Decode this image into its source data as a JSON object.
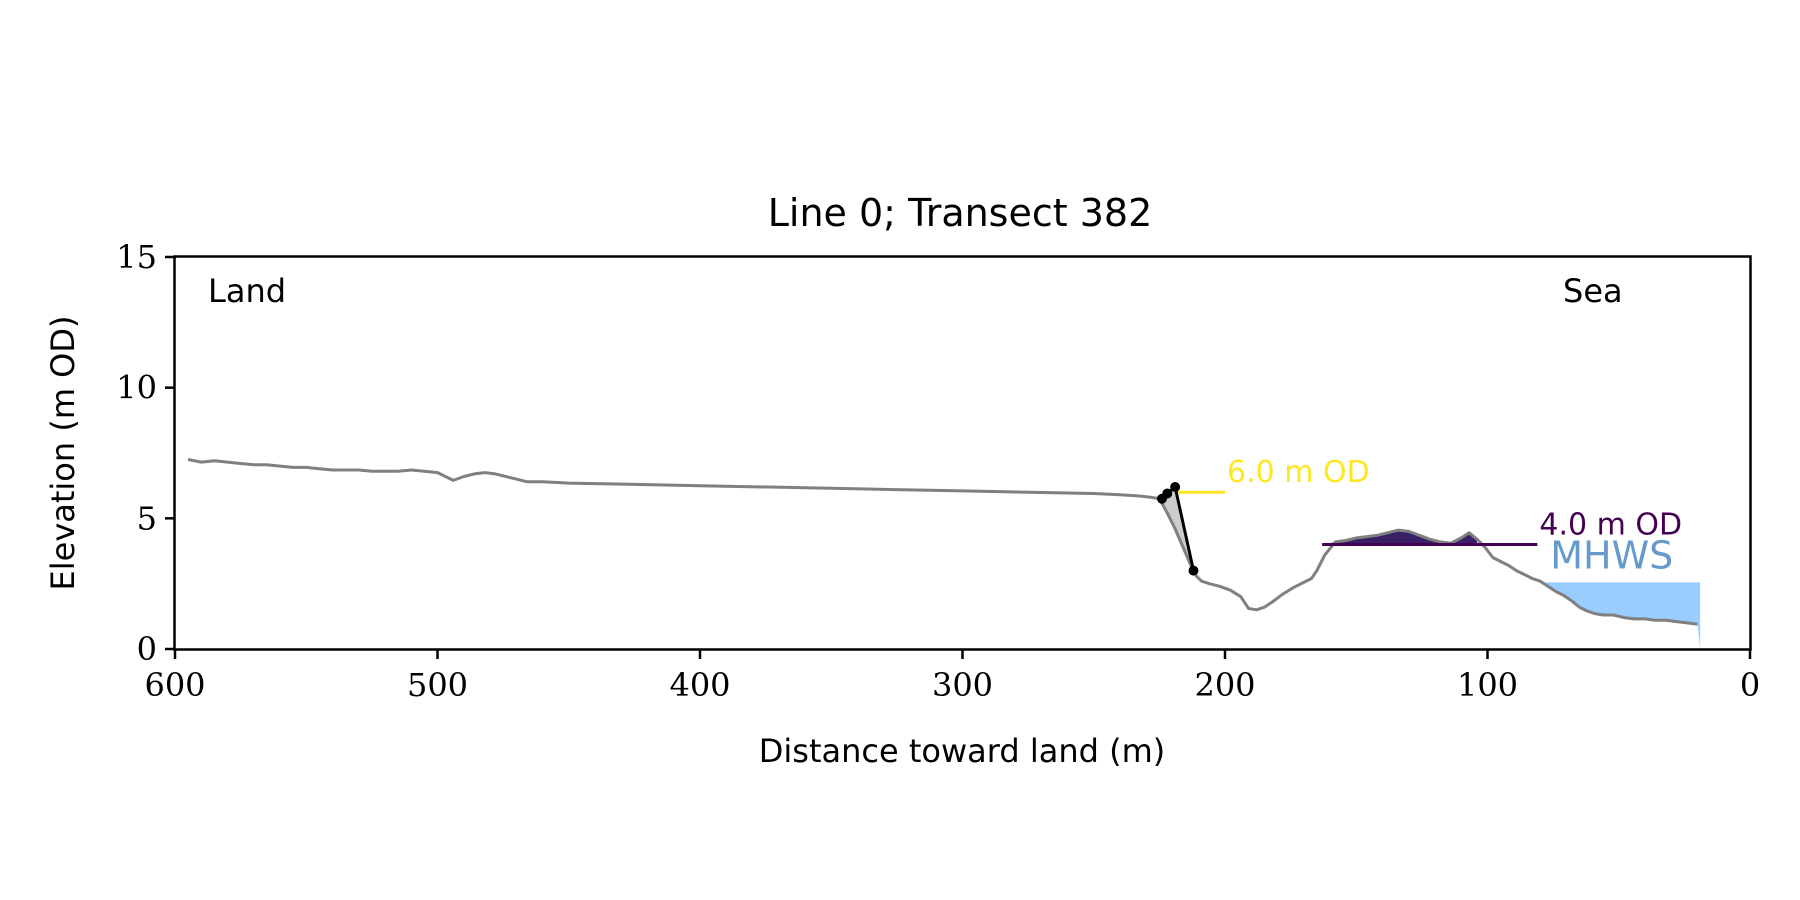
{
  "chart_data": {
    "type": "line",
    "title": "Line 0; Transect 382",
    "xlabel": "Distance toward land (m)",
    "ylabel": "Elevation (m OD)",
    "xlim": [
      600,
      0
    ],
    "ylim": [
      0,
      15
    ],
    "xticks": [
      600,
      500,
      400,
      300,
      200,
      100,
      0
    ],
    "yticks": [
      0,
      5,
      10,
      15
    ],
    "grid": false,
    "corner_labels": {
      "left": "Land",
      "right": "Sea"
    },
    "profile": {
      "color": "#808080",
      "x": [
        595,
        590,
        585,
        580,
        575,
        570,
        565,
        560,
        555,
        550,
        545,
        540,
        535,
        530,
        525,
        520,
        515,
        510,
        505,
        500,
        497,
        494,
        490,
        486,
        482,
        478,
        474,
        470,
        466,
        460,
        450,
        400,
        350,
        300,
        250,
        240,
        232,
        228,
        225,
        222,
        219,
        216,
        213,
        211,
        209,
        206,
        202,
        198,
        194,
        191,
        188,
        185,
        182,
        178,
        174,
        170,
        167,
        165,
        162,
        158,
        154,
        150,
        146,
        142,
        138,
        134,
        130,
        126,
        122,
        118,
        114,
        110,
        107,
        104,
        101,
        98,
        95,
        92,
        89,
        86,
        83,
        80,
        77,
        74,
        71,
        68,
        65,
        62,
        59,
        56,
        52,
        48,
        44,
        40,
        36,
        32,
        28,
        24,
        20
      ],
      "y": [
        7.25,
        7.15,
        7.2,
        7.15,
        7.1,
        7.05,
        7.05,
        7.0,
        6.95,
        6.95,
        6.9,
        6.85,
        6.85,
        6.85,
        6.8,
        6.8,
        6.8,
        6.85,
        6.8,
        6.75,
        6.6,
        6.45,
        6.6,
        6.7,
        6.75,
        6.7,
        6.6,
        6.5,
        6.4,
        6.4,
        6.35,
        6.25,
        6.15,
        6.05,
        5.95,
        5.9,
        5.85,
        5.8,
        5.75,
        5.2,
        4.6,
        3.9,
        3.2,
        2.8,
        2.6,
        2.5,
        2.4,
        2.25,
        2.0,
        1.55,
        1.5,
        1.6,
        1.8,
        2.1,
        2.35,
        2.55,
        2.7,
        3.0,
        3.6,
        4.1,
        4.15,
        4.25,
        4.3,
        4.35,
        4.45,
        4.55,
        4.5,
        4.35,
        4.2,
        4.1,
        4.05,
        4.25,
        4.45,
        4.2,
        3.9,
        3.5,
        3.35,
        3.2,
        3.0,
        2.85,
        2.7,
        2.6,
        2.4,
        2.2,
        2.05,
        1.85,
        1.6,
        1.45,
        1.35,
        1.3,
        1.3,
        1.2,
        1.15,
        1.15,
        1.1,
        1.1,
        1.05,
        1.0,
        0.95
      ]
    },
    "cliff": {
      "color": "#000000",
      "points": [
        [
          224,
          5.75
        ],
        [
          222,
          5.95
        ],
        [
          219,
          6.2
        ],
        [
          212,
          3.0
        ]
      ],
      "fill_color": "#cccccc"
    },
    "levels": [
      {
        "label": "6.0 m OD",
        "value": 6.0,
        "x_start": 219,
        "x_end": 200,
        "color": "#fde725"
      },
      {
        "label": "4.0 m OD",
        "value": 4.0,
        "x_start": 163,
        "x_end": 81,
        "color": "#440154",
        "fill_color": "#3b1f66"
      }
    ],
    "mhws": {
      "label": "MHWS",
      "value": 2.55,
      "x_start": 78,
      "x_end": 19,
      "color": "#99ccff",
      "label_color": "#6699cc"
    }
  }
}
